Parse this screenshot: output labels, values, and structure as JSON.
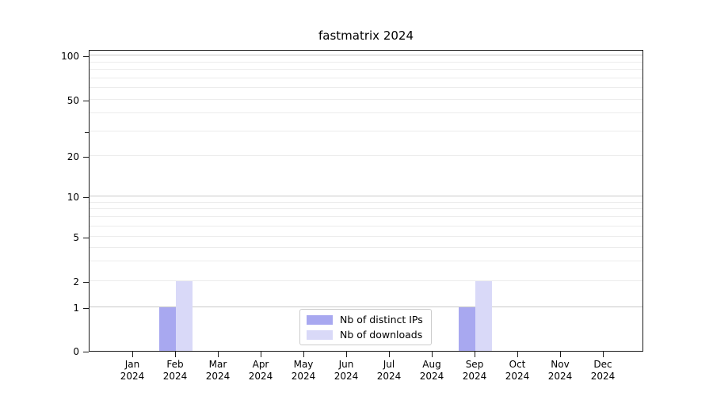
{
  "title": "fastmatrix 2024",
  "chart_data": {
    "type": "bar",
    "title": "fastmatrix 2024",
    "categories": [
      "Jan",
      "Feb",
      "Mar",
      "Apr",
      "May",
      "Jun",
      "Jul",
      "Aug",
      "Sep",
      "Oct",
      "Nov",
      "Dec"
    ],
    "category_sublabel": "2024",
    "series": [
      {
        "name": "Nb of distinct IPs",
        "color": "#a8a8f0",
        "values": [
          0,
          1,
          0,
          0,
          0,
          0,
          0,
          0,
          1,
          0,
          0,
          0
        ]
      },
      {
        "name": "Nb of downloads",
        "color": "#d9d9f8",
        "values": [
          0,
          2,
          0,
          0,
          0,
          0,
          0,
          0,
          2,
          0,
          0,
          0
        ]
      }
    ],
    "xlabel": "",
    "ylabel": "",
    "y_axis": {
      "scale": "symlog (linear 0-1, log-like above 1)",
      "major_ticks": [
        0,
        1,
        2,
        5,
        10,
        20,
        50,
        100
      ],
      "unlabeled_minor_tick": 30,
      "ylim": [
        0,
        115
      ]
    },
    "grid": {
      "horizontal": true,
      "vertical": false,
      "emphasized_gridline_values": [
        1,
        10,
        100
      ],
      "light_gridline_values": [
        2,
        3,
        4,
        5,
        6,
        7,
        8,
        9,
        20,
        30,
        40,
        50,
        60,
        70,
        80,
        90
      ]
    },
    "legend": {
      "position": "bottom-center-inside",
      "entries": [
        "Nb of distinct IPs",
        "Nb of downloads"
      ]
    },
    "colors": {
      "bar_distinct_ips": "#a8a8f0",
      "bar_downloads": "#d9d9f8",
      "grid_major": "#c9c9c9",
      "grid_minor": "#ececec",
      "spine": "#1a1a1a",
      "background": "#ffffff"
    }
  }
}
